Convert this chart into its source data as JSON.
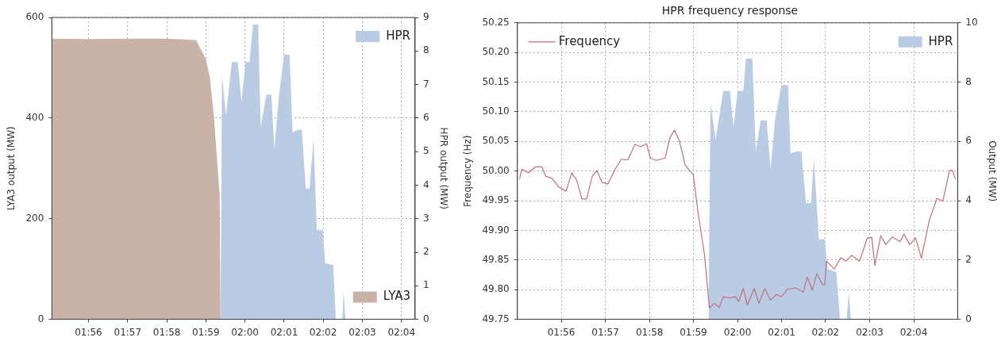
{
  "chart_data": [
    {
      "type": "area",
      "ylabel": "LYA3 output (MW)",
      "y2label": "HPR output (MW)",
      "xlim": [
        1.9177,
        2.0725
      ],
      "xticks": [
        {
          "value": 1.9333,
          "label": "01:56"
        },
        {
          "value": 1.95,
          "label": "01:57"
        },
        {
          "value": 1.9667,
          "label": "01:58"
        },
        {
          "value": 1.9833,
          "label": "01:59"
        },
        {
          "value": 2,
          "label": "02:00"
        },
        {
          "value": 2.0167,
          "label": "02:01"
        },
        {
          "value": 2.0333,
          "label": "02:02"
        },
        {
          "value": 2.05,
          "label": "02:03"
        },
        {
          "value": 2.0667,
          "label": "02:04"
        }
      ],
      "ylim": [
        0,
        600
      ],
      "yticks": [
        0,
        200,
        400,
        600
      ],
      "y2lim": [
        0,
        9
      ],
      "y2ticks": [
        0,
        1,
        2,
        3,
        4,
        5,
        6,
        7,
        8,
        9
      ],
      "grid": true,
      "legend": "top right",
      "series": [
        {
          "name": "HPR",
          "color": "#b9cce3",
          "axis": "y2",
          "x": [
            1.9896,
            1.9902,
            1.9919,
            1.9944,
            1.9969,
            1.9985,
            2.0002,
            2.0019,
            2.0034,
            2.0056,
            2.0067,
            2.0091,
            2.0112,
            2.0125,
            2.0145,
            2.0167,
            2.019,
            2.0203,
            2.0225,
            2.0242,
            2.0259,
            2.0275,
            2.0292,
            2.0306,
            2.0331,
            2.0342,
            2.0376,
            2.0387,
            2.0415,
            2.042,
            2.0428
          ],
          "values": [
            0,
            7.27,
            6.09,
            7.67,
            7.67,
            6.49,
            7.67,
            7.67,
            8.79,
            8.79,
            5.74,
            6.7,
            6.7,
            5.08,
            6.7,
            7.89,
            7.89,
            5.57,
            5.65,
            5.65,
            3.9,
            3.9,
            5.39,
            2.67,
            2.67,
            1.67,
            1.62,
            0,
            0,
            0.83,
            0
          ]
        },
        {
          "name": "LYA3",
          "color": "#c9b2a6",
          "x": [
            1.9177,
            1.9333,
            1.95,
            1.9667,
            1.9792,
            1.9833,
            1.985,
            1.9867,
            1.9892,
            1.9896
          ],
          "values": [
            558,
            557,
            558,
            558,
            555,
            517,
            482,
            406,
            248,
            0
          ]
        }
      ]
    },
    {
      "type": "area",
      "title": "HPR frequency response",
      "ylabel": "Frequency (Hz)",
      "y2label": "Output (MW)",
      "xlim": [
        1.9167,
        2.0833
      ],
      "xticks": [
        {
          "value": 1.9333,
          "label": "01:56"
        },
        {
          "value": 1.95,
          "label": "01:57"
        },
        {
          "value": 1.9667,
          "label": "01:58"
        },
        {
          "value": 1.9833,
          "label": "01:59"
        },
        {
          "value": 2,
          "label": "02:00"
        },
        {
          "value": 2.0167,
          "label": "02:01"
        },
        {
          "value": 2.0333,
          "label": "02:02"
        },
        {
          "value": 2.05,
          "label": "02:03"
        },
        {
          "value": 2.0667,
          "label": "02:04"
        }
      ],
      "ylim": [
        49.75,
        50.25
      ],
      "yticks": [
        49.75,
        {
          "value": 49.8,
          "label": "49.80"
        },
        49.85,
        {
          "value": 49.9,
          "label": "49.90"
        },
        49.95,
        {
          "value": 50,
          "label": "50.00"
        },
        50.05,
        {
          "value": 50.1,
          "label": "50.10"
        },
        50.15,
        {
          "value": 50.2,
          "label": "50.20"
        },
        50.25
      ],
      "y2lim": [
        0,
        10
      ],
      "y2ticks": [
        0,
        2,
        4,
        6,
        8,
        10
      ],
      "grid": true,
      "legend": "top right",
      "series": [
        {
          "name": "HPR",
          "color": "#b9cce3",
          "axis": "y2",
          "x": [
            1.989,
            1.9898,
            1.9917,
            1.9946,
            1.9971,
            1.9985,
            2,
            2.0022,
            2.0032,
            2.0056,
            2.0069,
            2.0088,
            2.011,
            2.0125,
            2.0142,
            2.0166,
            2.0191,
            2.0201,
            2.0224,
            2.0242,
            2.0259,
            2.0278,
            2.0289,
            2.0308,
            2.033,
            2.0341,
            2.0374,
            2.0388,
            2.0413,
            2.0421,
            2.0429
          ],
          "values": [
            0,
            7.29,
            6.07,
            7.7,
            7.7,
            6.48,
            7.7,
            7.7,
            8.8,
            8.8,
            5.66,
            6.71,
            6.71,
            5.08,
            6.71,
            7.9,
            7.9,
            5.6,
            5.66,
            5.66,
            3.92,
            3.92,
            5.41,
            2.7,
            2.7,
            1.71,
            1.59,
            0,
            0,
            0.9,
            0
          ]
        },
        {
          "name": "Frequency",
          "type": "line",
          "color": "#c0707a",
          "x": [
            1.9175,
            1.9184,
            1.9209,
            1.9234,
            1.926,
            1.9275,
            1.9297,
            1.9322,
            1.9351,
            1.9373,
            1.9392,
            1.9411,
            1.9429,
            1.9451,
            1.9468,
            1.9487,
            1.9509,
            1.9538,
            1.956,
            1.9585,
            1.9612,
            1.9634,
            1.9656,
            1.967,
            1.9692,
            1.9726,
            1.9744,
            1.9761,
            1.978,
            1.9802,
            1.9824,
            1.9832,
            1.9853,
            1.9875,
            1.9894,
            1.9912,
            1.9931,
            1.9946,
            1.9971,
            1.9993,
            2.0004,
            2.0022,
            2.0037,
            2.0063,
            2.0081,
            2.0103,
            2.0125,
            2.0147,
            2.0166,
            2.019,
            2.022,
            2.0249,
            2.0264,
            2.0283,
            2.03,
            2.0322,
            2.033,
            2.0337,
            2.0366,
            2.0391,
            2.041,
            2.0432,
            2.0462,
            2.0491,
            2.0508,
            2.052,
            2.0542,
            2.0561,
            2.0586,
            2.0615,
            2.063,
            2.0652,
            2.0674,
            2.0696,
            2.0725,
            2.0755,
            2.0777,
            2.0802,
            2.0813,
            2.0825
          ],
          "values": [
            49.987,
            50.003,
            49.997,
            50.007,
            50.007,
            49.991,
            49.988,
            49.974,
            49.966,
            49.997,
            49.984,
            49.953,
            49.953,
            49.992,
            50.001,
            49.981,
            49.978,
            50.004,
            50.02,
            50.019,
            50.045,
            50.041,
            50.046,
            50.022,
            50.018,
            50.022,
            50.056,
            50.069,
            50.051,
            50.01,
            49.998,
            49.995,
            49.923,
            49.859,
            49.769,
            49.777,
            49.77,
            49.788,
            49.786,
            49.788,
            49.78,
            49.802,
            49.774,
            49.802,
            49.777,
            49.802,
            49.782,
            49.792,
            49.788,
            49.801,
            49.803,
            49.796,
            49.821,
            49.799,
            49.827,
            49.808,
            49.808,
            49.848,
            49.835,
            49.854,
            49.848,
            49.858,
            49.848,
            49.887,
            49.888,
            49.841,
            49.891,
            49.876,
            49.889,
            49.881,
            49.894,
            49.876,
            49.887,
            49.853,
            49.916,
            49.954,
            49.949,
            50.001,
            50.001,
            49.987
          ]
        }
      ]
    }
  ]
}
